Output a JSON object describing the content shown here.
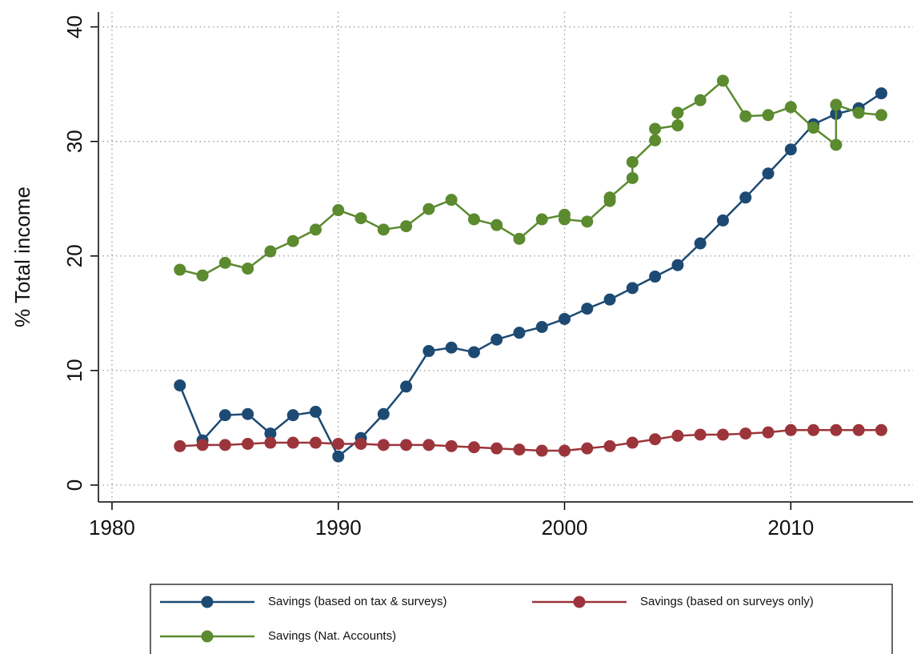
{
  "chart_data": {
    "type": "line",
    "ylabel": "% Total income",
    "xlim": [
      1979.4,
      2015.4
    ],
    "xticks": [
      1980,
      1990,
      2000,
      2010
    ],
    "ylim": [
      -1.47,
      41.3
    ],
    "yticks": [
      0,
      10,
      20,
      30,
      40
    ],
    "grid": true,
    "legend": "bottom",
    "series": [
      {
        "name": "Savings (based on tax & surveys)",
        "color": "#1d4a73",
        "x": [
          1983,
          1984,
          1985,
          1986,
          1987,
          1988,
          1989,
          1990,
          1991,
          1992,
          1993,
          1994,
          1995,
          1996,
          1997,
          1998,
          1999,
          2000,
          2001,
          2002,
          2003,
          2004,
          2005,
          2006,
          2007,
          2008,
          2009,
          2010,
          2011,
          2012,
          2013,
          2014
        ],
        "values": [
          8.7,
          3.9,
          6.1,
          6.2,
          4.5,
          6.1,
          6.4,
          2.5,
          4.1,
          6.2,
          8.6,
          11.7,
          12.0,
          11.6,
          12.7,
          13.3,
          13.8,
          14.5,
          15.4,
          16.2,
          17.2,
          18.2,
          19.2,
          21.1,
          23.1,
          25.1,
          27.2,
          29.3,
          31.5,
          32.4,
          32.9,
          34.2
        ]
      },
      {
        "name": "Savings (based on surveys only)",
        "color": "#9b353b",
        "x": [
          1983,
          1984,
          1985,
          1986,
          1987,
          1988,
          1989,
          1990,
          1991,
          1992,
          1993,
          1994,
          1995,
          1996,
          1997,
          1998,
          1999,
          2000,
          2001,
          2002,
          2003,
          2004,
          2005,
          2006,
          2007,
          2008,
          2009,
          2010,
          2011,
          2012,
          2013,
          2014
        ],
        "values": [
          3.4,
          3.5,
          3.5,
          3.6,
          3.7,
          3.7,
          3.7,
          3.6,
          3.6,
          3.5,
          3.5,
          3.5,
          3.4,
          3.3,
          3.2,
          3.1,
          3.0,
          3.0,
          3.2,
          3.4,
          3.7,
          4.0,
          4.3,
          4.4,
          4.4,
          4.5,
          4.6,
          4.8,
          4.8,
          4.8,
          4.8,
          4.8
        ]
      },
      {
        "name": "Savings (Nat. Accounts)",
        "color": "#5b8a2f",
        "x": [
          1983,
          1984,
          1985,
          1986,
          1987,
          1988,
          1989,
          1990,
          1991,
          1992,
          1993,
          1994,
          1995,
          1996,
          1997,
          1998,
          1999,
          2000,
          2000,
          2001,
          2002,
          2002,
          2003,
          2003,
          2004,
          2004,
          2005,
          2005,
          2006,
          2007,
          2008,
          2009,
          2010,
          2011,
          2012,
          2012,
          2013,
          2014
        ],
        "values": [
          18.8,
          18.3,
          19.4,
          18.9,
          20.4,
          21.3,
          22.3,
          24.0,
          23.3,
          22.3,
          22.6,
          24.1,
          24.9,
          23.2,
          22.7,
          21.5,
          23.2,
          23.6,
          23.2,
          23.0,
          24.8,
          25.1,
          26.8,
          28.2,
          30.1,
          31.1,
          31.4,
          32.5,
          33.6,
          35.3,
          32.2,
          32.3,
          33.0,
          31.2,
          29.7,
          33.2,
          32.5,
          32.3
        ]
      }
    ]
  }
}
